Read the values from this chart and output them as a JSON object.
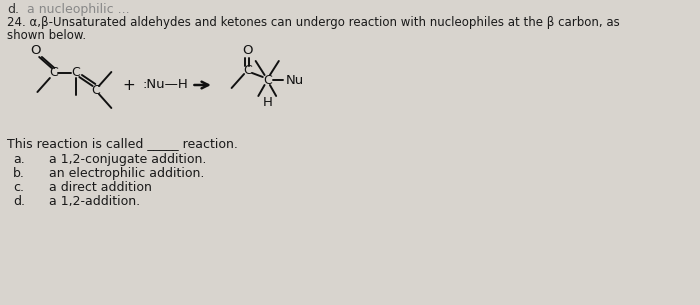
{
  "bg_color": "#d8d4ce",
  "text_color": "#1a1a1a",
  "figsize": [
    7.0,
    3.05
  ],
  "dpi": 100,
  "q1": "24. α,β-Unsaturated aldehydes and ketones can undergo reaction with nucleophiles at the β carbon, as",
  "q2": "shown below.",
  "reaction_text": "This reaction is called _____ reaction.",
  "choices_labels": [
    "a.",
    "b.",
    "c.",
    "d."
  ],
  "choices_texts": [
    "a 1,2-conjugate addition.",
    "an electrophilic addition.",
    "a direct addition",
    "a 1,2-addition."
  ]
}
